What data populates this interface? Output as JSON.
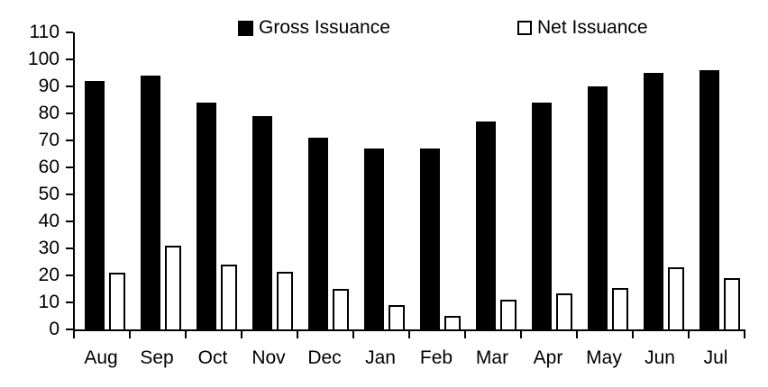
{
  "chart_data": {
    "type": "bar",
    "categories": [
      "Aug",
      "Sep",
      "Oct",
      "Nov",
      "Dec",
      "Jan",
      "Feb",
      "Mar",
      "Apr",
      "May",
      "Jun",
      "Jul"
    ],
    "series": [
      {
        "name": "Gross Issuance",
        "values": [
          92,
          94,
          84,
          79,
          71,
          67,
          67,
          77,
          84,
          90,
          95,
          96
        ]
      },
      {
        "name": "Net Issuance",
        "values": [
          21,
          31,
          24,
          21.5,
          15,
          9,
          5,
          11,
          13.5,
          15.5,
          23,
          19
        ]
      }
    ],
    "title": "",
    "xlabel": "",
    "ylabel": "",
    "ylim": [
      0,
      110
    ],
    "yticks": [
      0,
      10,
      20,
      30,
      40,
      50,
      60,
      70,
      80,
      90,
      100,
      110
    ],
    "grid": false,
    "legend_position": "top"
  },
  "colors": {
    "gross_bar": "#000000",
    "net_bar_fill": "#ffffff",
    "net_bar_border": "#000000",
    "axis": "#000000",
    "background": "#ffffff",
    "text": "#000000"
  }
}
